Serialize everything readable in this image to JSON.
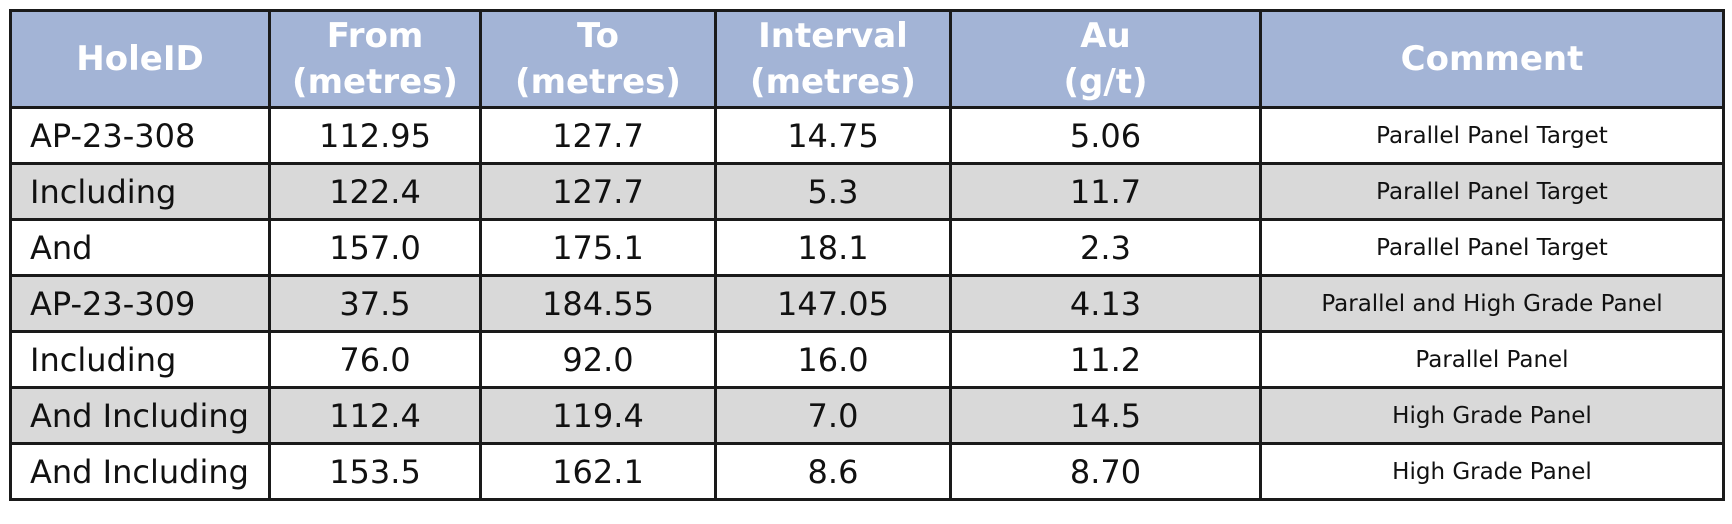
{
  "table": {
    "header": {
      "holeid": [
        "HoleID"
      ],
      "from": [
        "From",
        "(metres)"
      ],
      "to": [
        "To",
        "(metres)"
      ],
      "interval": [
        "Interval",
        "(metres)"
      ],
      "au": [
        "Au",
        "(g/t)"
      ],
      "comment": [
        "Comment"
      ]
    },
    "rows": [
      {
        "holeid": "AP-23-308",
        "from": "112.95",
        "to": "127.7",
        "interval": "14.75",
        "au": "5.06",
        "comment": "Parallel Panel Target"
      },
      {
        "holeid": "Including",
        "from": "122.4",
        "to": "127.7",
        "interval": "5.3",
        "au": "11.7",
        "comment": "Parallel Panel Target"
      },
      {
        "holeid": "And",
        "from": "157.0",
        "to": "175.1",
        "interval": "18.1",
        "au": "2.3",
        "comment": "Parallel Panel Target"
      },
      {
        "holeid": "AP-23-309",
        "from": "37.5",
        "to": "184.55",
        "interval": "147.05",
        "au": "4.13",
        "comment": "Parallel and High Grade Panel"
      },
      {
        "holeid": "Including",
        "from": "76.0",
        "to": "92.0",
        "interval": "16.0",
        "au": "11.2",
        "comment": "Parallel Panel"
      },
      {
        "holeid": "And Including",
        "from": "112.4",
        "to": "119.4",
        "interval": "7.0",
        "au": "14.5",
        "comment": "High Grade Panel"
      },
      {
        "holeid": "And Including",
        "from": "153.5",
        "to": "162.1",
        "interval": "8.6",
        "au": "8.70",
        "comment": "High Grade Panel"
      }
    ]
  },
  "colors": {
    "header_bg": "#a3b4d6",
    "header_text": "#ffffff",
    "shaded_row_bg": "#d9d9d9",
    "border": "#1a1a1a"
  }
}
